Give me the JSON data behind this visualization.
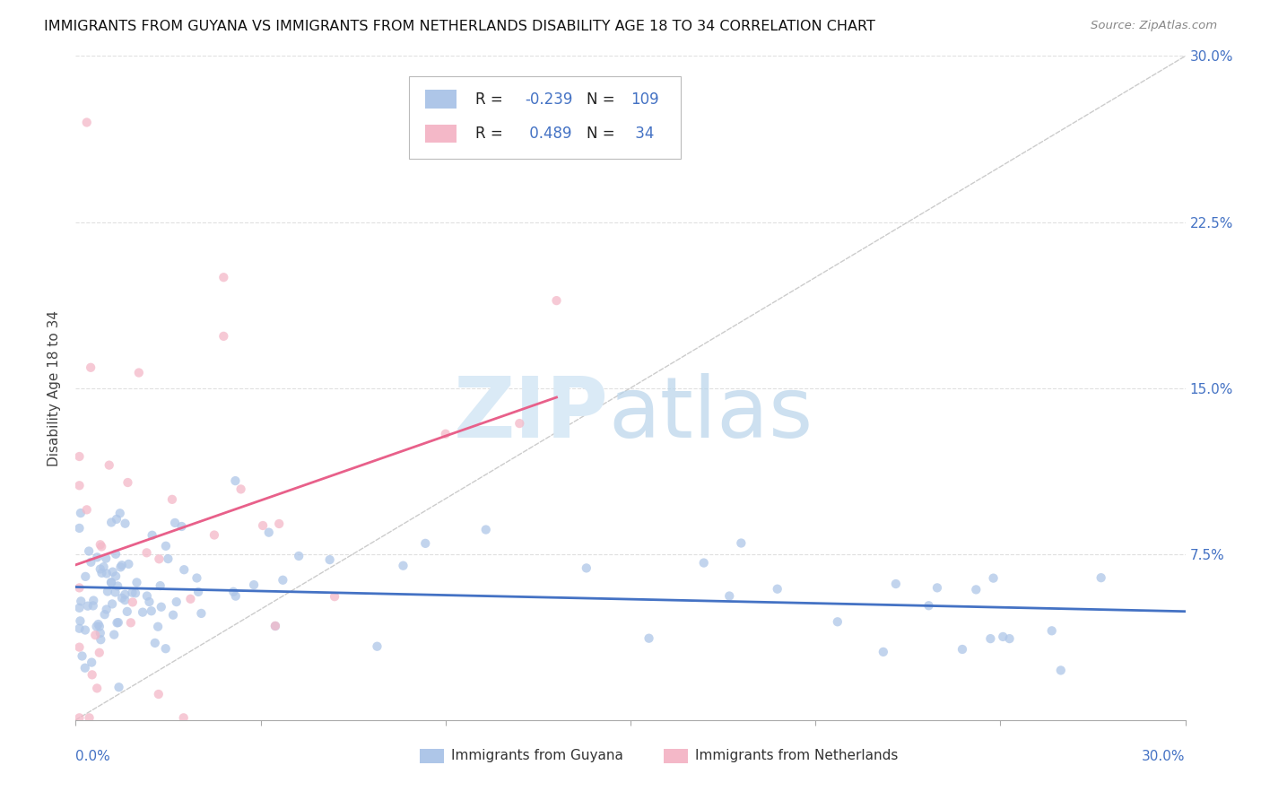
{
  "title": "IMMIGRANTS FROM GUYANA VS IMMIGRANTS FROM NETHERLANDS DISABILITY AGE 18 TO 34 CORRELATION CHART",
  "source": "Source: ZipAtlas.com",
  "ylabel": "Disability Age 18 to 34",
  "xlim": [
    0.0,
    0.3
  ],
  "ylim": [
    0.0,
    0.3
  ],
  "background_color": "#ffffff",
  "scatter_color_guyana": "#aec6e8",
  "scatter_color_netherlands": "#f4b8c8",
  "line_color_guyana": "#4472c4",
  "line_color_netherlands": "#e8608a",
  "diagonal_color": "#cccccc",
  "grid_color": "#e0e0e0",
  "legend_R_guyana": "-0.239",
  "legend_N_guyana": "109",
  "legend_R_netherlands": "0.489",
  "legend_N_netherlands": "34",
  "text_color_blue": "#4472c4",
  "text_color_dark": "#333333",
  "text_color_source": "#888888"
}
